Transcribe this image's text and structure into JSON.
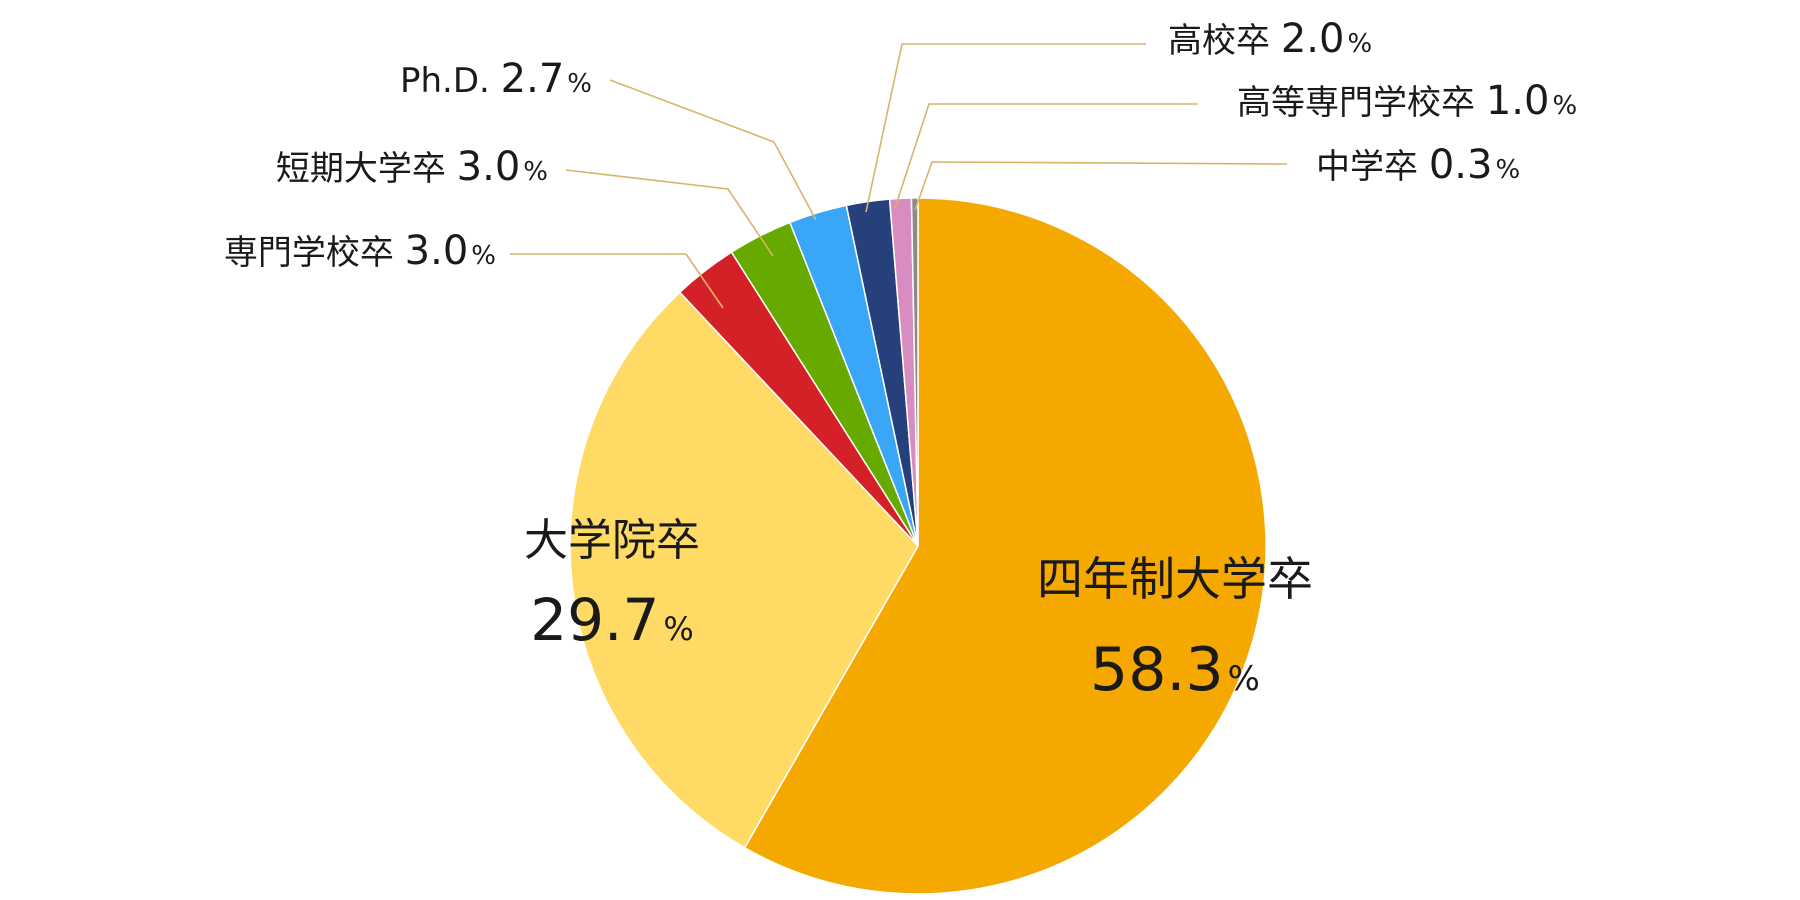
{
  "chart_data": {
    "type": "pie",
    "start_angle_deg": 0,
    "direction": "clockwise",
    "unit": "%",
    "slices": [
      {
        "label": "四年制大学卒",
        "value": 58.3,
        "value_text": "58.3",
        "color": "#F5A800"
      },
      {
        "label": "大学院卒",
        "value": 29.7,
        "value_text": "29.7",
        "color": "#FFDB66"
      },
      {
        "label": "専門学校卒",
        "value": 3.0,
        "value_text": "3.0",
        "color": "#D42127"
      },
      {
        "label": "短期大学卒",
        "value": 3.0,
        "value_text": "3.0",
        "color": "#66AA00"
      },
      {
        "label": "Ph.D.",
        "value": 2.7,
        "value_text": "2.7",
        "color": "#3AA6F7"
      },
      {
        "label": "高校卒",
        "value": 2.0,
        "value_text": "2.0",
        "color": "#25407A"
      },
      {
        "label": "高等専門学校卒",
        "value": 1.0,
        "value_text": "1.0",
        "color": "#D98CC0"
      },
      {
        "label": "中学卒",
        "value": 0.3,
        "value_text": "0.3",
        "color": "#8A8A8A"
      }
    ],
    "leader_line_color": "#D8B46A"
  }
}
